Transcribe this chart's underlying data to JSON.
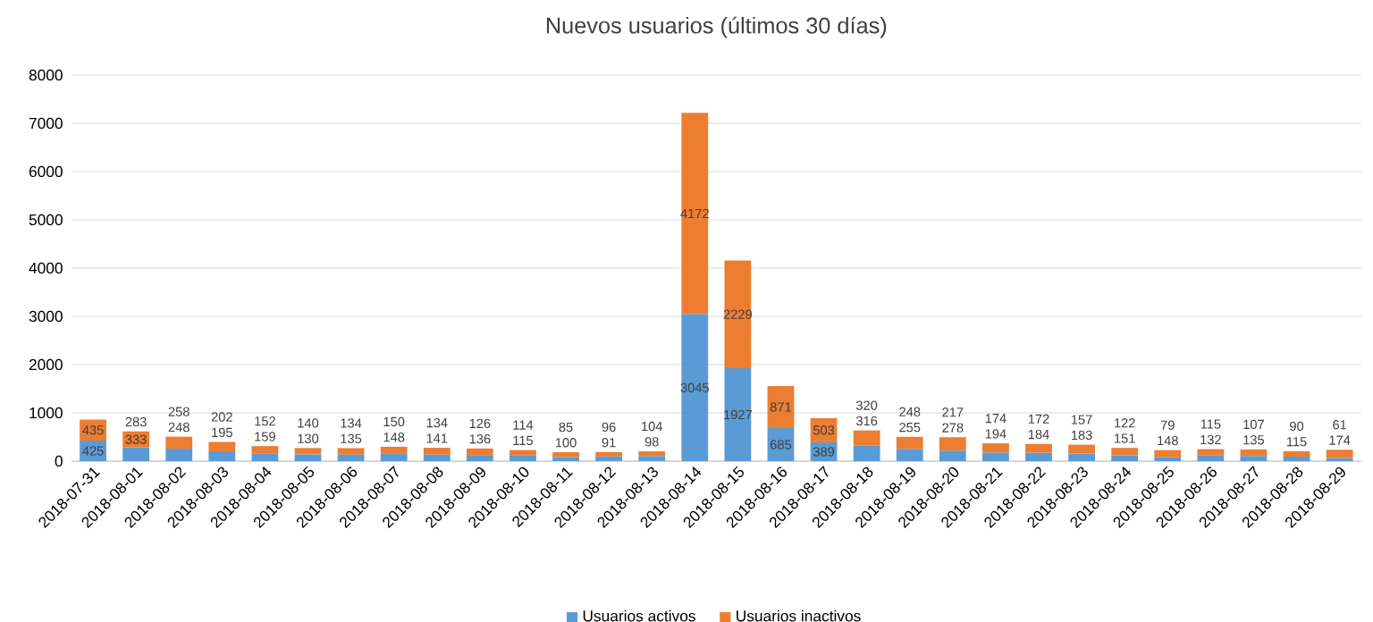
{
  "chart_data": {
    "type": "bar",
    "stacked": true,
    "title": "Nuevos usuarios (últimos 30 días)",
    "categories": [
      "2018-07-31",
      "2018-08-01",
      "2018-08-02",
      "2018-08-03",
      "2018-08-04",
      "2018-08-05",
      "2018-08-06",
      "2018-08-07",
      "2018-08-08",
      "2018-08-09",
      "2018-08-10",
      "2018-08-11",
      "2018-08-12",
      "2018-08-13",
      "2018-08-14",
      "2018-08-15",
      "2018-08-16",
      "2018-08-17",
      "2018-08-18",
      "2018-08-19",
      "2018-08-20",
      "2018-08-21",
      "2018-08-22",
      "2018-08-23",
      "2018-08-24",
      "2018-08-25",
      "2018-08-26",
      "2018-08-27",
      "2018-08-28",
      "2018-08-29"
    ],
    "series": [
      {
        "name": "Usuarios activos",
        "color": "#5b9bd5",
        "values": [
          425,
          283,
          258,
          202,
          152,
          140,
          134,
          150,
          134,
          126,
          114,
          85,
          96,
          104,
          3045,
          1927,
          685,
          389,
          320,
          248,
          217,
          174,
          172,
          157,
          122,
          79,
          115,
          107,
          90,
          61
        ]
      },
      {
        "name": "Usuarios inactivos",
        "color": "#ed7d31",
        "values": [
          435,
          333,
          248,
          195,
          159,
          130,
          135,
          148,
          141,
          136,
          115,
          100,
          91,
          98,
          4172,
          2229,
          871,
          503,
          316,
          255,
          278,
          194,
          184,
          183,
          151,
          148,
          132,
          135,
          115,
          174
        ]
      }
    ],
    "ylim": [
      0,
      8000
    ],
    "yticks": [
      0,
      1000,
      2000,
      3000,
      4000,
      5000,
      6000,
      7000,
      8000
    ],
    "grid": "y",
    "legend": "bottom",
    "data_labels": true
  }
}
